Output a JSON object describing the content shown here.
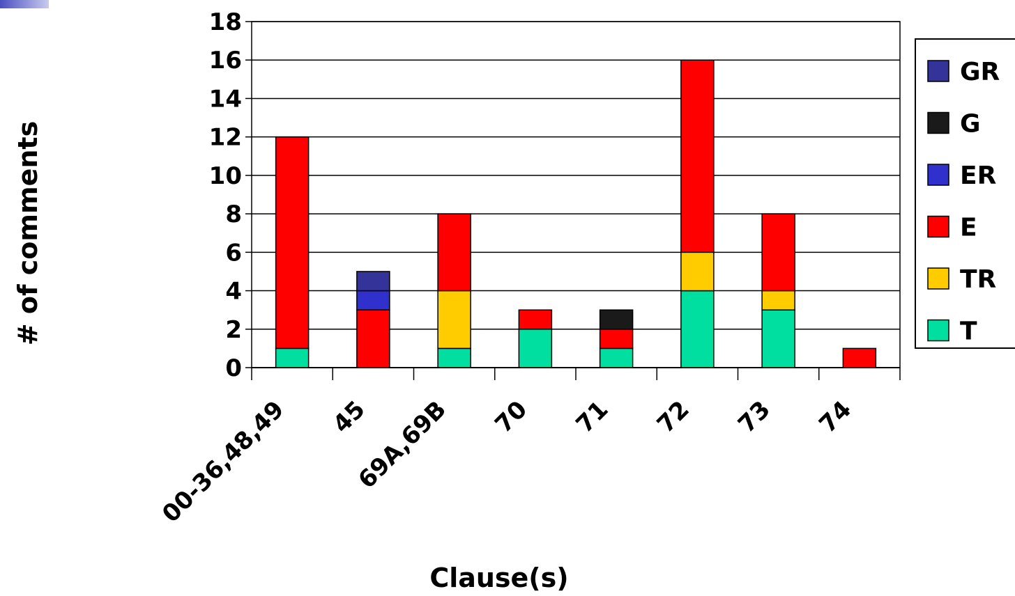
{
  "chart_data": {
    "type": "bar",
    "stacked": true,
    "xlabel": "Clause(s)",
    "ylabel": "# of comments",
    "ylim": [
      0,
      18
    ],
    "ytick_step": 2,
    "categories": [
      "00-36,48,49",
      "45",
      "69A,69B",
      "70",
      "71",
      "72",
      "73",
      "74"
    ],
    "series": [
      {
        "name": "T",
        "color": "#00dfa0",
        "values": [
          1,
          0,
          1,
          2,
          1,
          4,
          3,
          0
        ]
      },
      {
        "name": "TR",
        "color": "#ffcc00",
        "values": [
          0,
          0,
          3,
          0,
          0,
          2,
          1,
          0
        ]
      },
      {
        "name": "E",
        "color": "#ff0000",
        "values": [
          11,
          3,
          4,
          1,
          1,
          10,
          4,
          1
        ]
      },
      {
        "name": "ER",
        "color": "#3030cc",
        "values": [
          0,
          1,
          0,
          0,
          0,
          0,
          0,
          0
        ]
      },
      {
        "name": "G",
        "color": "#1a1a1a",
        "values": [
          0,
          0,
          0,
          0,
          1,
          0,
          0,
          0
        ]
      },
      {
        "name": "GR",
        "color": "#333399",
        "values": [
          0,
          1,
          0,
          0,
          0,
          0,
          0,
          0
        ]
      }
    ],
    "legend_position": "right",
    "grid": true
  }
}
